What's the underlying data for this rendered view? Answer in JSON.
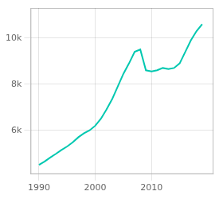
{
  "chart_data": {
    "type": "line",
    "x": [
      1990,
      1991,
      1992,
      1993,
      1994,
      1995,
      1996,
      1997,
      1998,
      1999,
      2000,
      2001,
      2002,
      2003,
      2004,
      2005,
      2006,
      2007,
      2008,
      2009,
      2010,
      2011,
      2012,
      2013,
      2014,
      2015,
      2016,
      2017,
      2018,
      2019
    ],
    "values": [
      4500,
      4650,
      4820,
      4980,
      5150,
      5300,
      5480,
      5700,
      5870,
      6000,
      6200,
      6500,
      6900,
      7350,
      7900,
      8450,
      8900,
      9400,
      9500,
      8600,
      8550,
      8600,
      8700,
      8650,
      8700,
      8900,
      9400,
      9900,
      10300,
      10600
    ],
    "color": "#00C8B0",
    "xlim": [
      1988.5,
      2021
    ],
    "ylim": [
      4100,
      11300
    ],
    "xticks": [
      1990,
      2000,
      2010
    ],
    "yticks": [
      {
        "value": 6000,
        "label": "6k"
      },
      {
        "value": 8000,
        "label": "8k"
      },
      {
        "value": 10000,
        "label": "10k"
      }
    ],
    "grid": true
  }
}
